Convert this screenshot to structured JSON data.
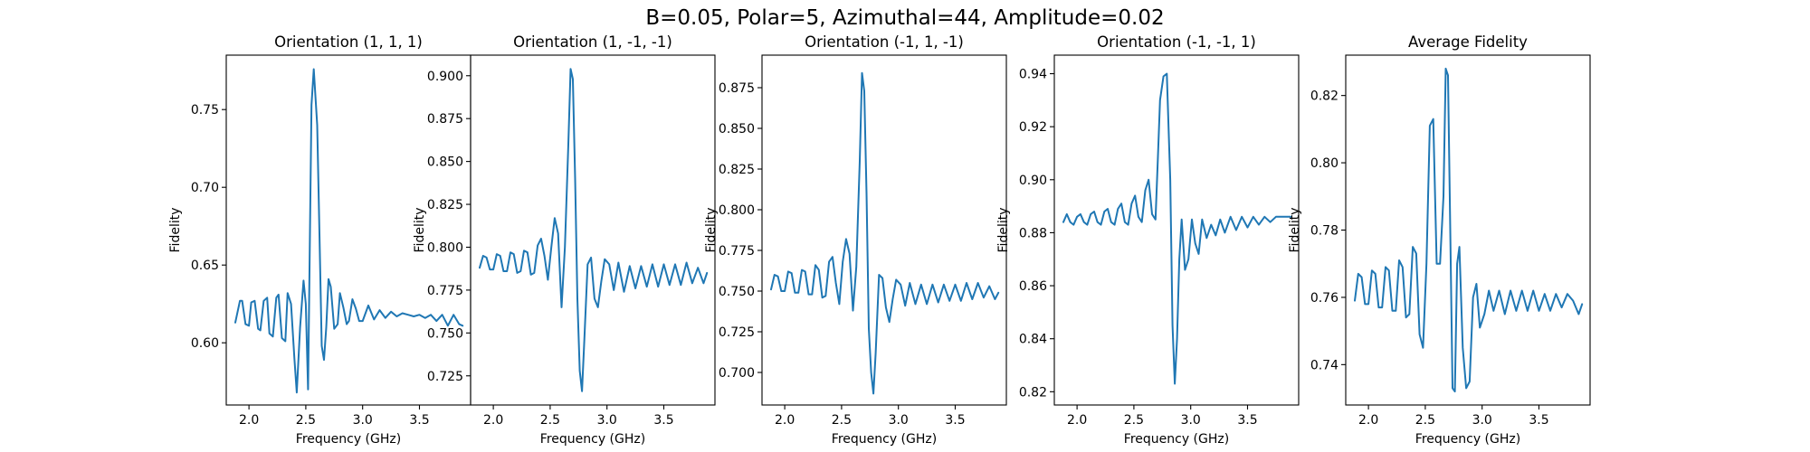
{
  "figure": {
    "title": "B=0.05, Polar=5, Azimuthal=44, Amplitude=0.02",
    "line_color": "#1f77b4"
  },
  "chart_data": [
    {
      "type": "line",
      "title": "Orientation (1, 1, 1)",
      "xlabel": "Frequency (GHz)",
      "ylabel": "Fidelity",
      "xlim": [
        1.8,
        3.95
      ],
      "ylim": [
        0.56,
        0.785
      ],
      "xticks": [
        2.0,
        2.5,
        3.0,
        3.5
      ],
      "xtick_labels": [
        "2.0",
        "2.5",
        "3.0",
        "3.5"
      ],
      "yticks": [
        0.6,
        0.65,
        0.7,
        0.75
      ],
      "ytick_labels": [
        "0.60",
        "0.65",
        "0.70",
        "0.75"
      ],
      "grid": false,
      "series": [
        {
          "x": [
            1.88,
            1.92,
            1.94,
            1.97,
            2.0,
            2.02,
            2.05,
            2.08,
            2.1,
            2.13,
            2.16,
            2.18,
            2.21,
            2.24,
            2.26,
            2.29,
            2.32,
            2.34,
            2.37,
            2.4,
            2.42,
            2.45,
            2.48,
            2.5,
            2.52,
            2.55,
            2.57,
            2.6,
            2.62,
            2.64,
            2.66,
            2.68,
            2.7,
            2.72,
            2.75,
            2.78,
            2.8,
            2.83,
            2.86,
            2.88,
            2.91,
            2.94,
            2.97,
            3.0,
            3.05,
            3.1,
            3.15,
            3.2,
            3.25,
            3.3,
            3.35,
            3.4,
            3.45,
            3.5,
            3.55,
            3.6,
            3.65,
            3.7,
            3.75,
            3.8,
            3.85,
            3.88
          ],
          "y": [
            0.613,
            0.627,
            0.627,
            0.612,
            0.611,
            0.626,
            0.627,
            0.609,
            0.608,
            0.627,
            0.629,
            0.606,
            0.604,
            0.629,
            0.631,
            0.603,
            0.601,
            0.632,
            0.625,
            0.59,
            0.568,
            0.61,
            0.64,
            0.625,
            0.57,
            0.753,
            0.776,
            0.74,
            0.67,
            0.598,
            0.589,
            0.61,
            0.641,
            0.636,
            0.609,
            0.612,
            0.632,
            0.623,
            0.612,
            0.614,
            0.628,
            0.622,
            0.614,
            0.614,
            0.624,
            0.615,
            0.621,
            0.616,
            0.62,
            0.617,
            0.619,
            0.618,
            0.617,
            0.618,
            0.616,
            0.618,
            0.614,
            0.618,
            0.611,
            0.618,
            0.612,
            0.611
          ]
        }
      ]
    },
    {
      "type": "line",
      "title": "Orientation (1, -1, -1)",
      "xlabel": "Frequency (GHz)",
      "ylabel": "Fidelity",
      "xlim": [
        1.8,
        3.95
      ],
      "ylim": [
        0.708,
        0.912
      ],
      "xticks": [
        2.0,
        2.5,
        3.0,
        3.5
      ],
      "xtick_labels": [
        "2.0",
        "2.5",
        "3.0",
        "3.5"
      ],
      "yticks": [
        0.725,
        0.75,
        0.775,
        0.8,
        0.825,
        0.85,
        0.875,
        0.9
      ],
      "ytick_labels": [
        "0.725",
        "0.750",
        "0.775",
        "0.800",
        "0.825",
        "0.850",
        "0.875",
        "0.900"
      ],
      "grid": false,
      "series": [
        {
          "x": [
            1.88,
            1.91,
            1.94,
            1.97,
            2.0,
            2.03,
            2.06,
            2.09,
            2.12,
            2.15,
            2.18,
            2.21,
            2.24,
            2.27,
            2.3,
            2.33,
            2.36,
            2.39,
            2.42,
            2.45,
            2.48,
            2.51,
            2.54,
            2.57,
            2.6,
            2.63,
            2.66,
            2.68,
            2.7,
            2.72,
            2.74,
            2.76,
            2.78,
            2.8,
            2.83,
            2.86,
            2.89,
            2.92,
            2.95,
            2.98,
            3.02,
            3.06,
            3.1,
            3.15,
            3.2,
            3.25,
            3.3,
            3.35,
            3.4,
            3.45,
            3.5,
            3.55,
            3.6,
            3.65,
            3.7,
            3.75,
            3.8,
            3.85,
            3.88
          ],
          "y": [
            0.788,
            0.795,
            0.794,
            0.787,
            0.787,
            0.796,
            0.795,
            0.786,
            0.786,
            0.797,
            0.796,
            0.785,
            0.786,
            0.798,
            0.797,
            0.784,
            0.785,
            0.801,
            0.805,
            0.795,
            0.781,
            0.8,
            0.817,
            0.808,
            0.765,
            0.8,
            0.86,
            0.904,
            0.898,
            0.84,
            0.77,
            0.728,
            0.716,
            0.745,
            0.79,
            0.794,
            0.77,
            0.765,
            0.78,
            0.793,
            0.79,
            0.775,
            0.791,
            0.774,
            0.789,
            0.776,
            0.789,
            0.777,
            0.79,
            0.777,
            0.79,
            0.778,
            0.79,
            0.778,
            0.791,
            0.779,
            0.788,
            0.779,
            0.785
          ]
        }
      ]
    },
    {
      "type": "line",
      "title": "Orientation (-1, 1, -1)",
      "xlabel": "Frequency (GHz)",
      "ylabel": "Fidelity",
      "xlim": [
        1.8,
        3.95
      ],
      "ylim": [
        0.68,
        0.895
      ],
      "xticks": [
        2.0,
        2.5,
        3.0,
        3.5
      ],
      "xtick_labels": [
        "2.0",
        "2.5",
        "3.0",
        "3.5"
      ],
      "yticks": [
        0.7,
        0.725,
        0.75,
        0.775,
        0.8,
        0.825,
        0.85,
        0.875
      ],
      "ytick_labels": [
        "0.700",
        "0.725",
        "0.750",
        "0.775",
        "0.800",
        "0.825",
        "0.850",
        "0.875"
      ],
      "grid": false,
      "series": [
        {
          "x": [
            1.88,
            1.91,
            1.94,
            1.97,
            2.0,
            2.03,
            2.06,
            2.09,
            2.12,
            2.15,
            2.18,
            2.21,
            2.24,
            2.27,
            2.3,
            2.33,
            2.36,
            2.39,
            2.42,
            2.45,
            2.48,
            2.51,
            2.54,
            2.57,
            2.6,
            2.63,
            2.66,
            2.68,
            2.7,
            2.72,
            2.74,
            2.76,
            2.78,
            2.8,
            2.83,
            2.86,
            2.89,
            2.92,
            2.95,
            2.98,
            3.02,
            3.06,
            3.1,
            3.15,
            3.2,
            3.25,
            3.3,
            3.35,
            3.4,
            3.45,
            3.5,
            3.55,
            3.6,
            3.65,
            3.7,
            3.75,
            3.8,
            3.85,
            3.88
          ],
          "y": [
            0.751,
            0.76,
            0.759,
            0.75,
            0.75,
            0.762,
            0.761,
            0.749,
            0.749,
            0.763,
            0.762,
            0.748,
            0.748,
            0.766,
            0.763,
            0.746,
            0.747,
            0.768,
            0.771,
            0.755,
            0.742,
            0.768,
            0.782,
            0.773,
            0.738,
            0.765,
            0.83,
            0.884,
            0.873,
            0.81,
            0.727,
            0.7,
            0.687,
            0.712,
            0.76,
            0.758,
            0.74,
            0.731,
            0.745,
            0.757,
            0.754,
            0.741,
            0.755,
            0.742,
            0.754,
            0.742,
            0.754,
            0.743,
            0.754,
            0.744,
            0.754,
            0.744,
            0.755,
            0.745,
            0.755,
            0.746,
            0.753,
            0.745,
            0.749
          ]
        }
      ]
    },
    {
      "type": "line",
      "title": "Orientation (-1, -1, 1)",
      "xlabel": "Frequency (GHz)",
      "ylabel": "Fidelity",
      "xlim": [
        1.8,
        3.95
      ],
      "ylim": [
        0.815,
        0.947
      ],
      "xticks": [
        2.0,
        2.5,
        3.0,
        3.5
      ],
      "xtick_labels": [
        "2.0",
        "2.5",
        "3.0",
        "3.5"
      ],
      "yticks": [
        0.82,
        0.84,
        0.86,
        0.88,
        0.9,
        0.92,
        0.94
      ],
      "ytick_labels": [
        "0.82",
        "0.84",
        "0.86",
        "0.88",
        "0.90",
        "0.92",
        "0.94"
      ],
      "grid": false,
      "series": [
        {
          "x": [
            1.88,
            1.91,
            1.94,
            1.97,
            2.0,
            2.03,
            2.06,
            2.09,
            2.12,
            2.15,
            2.18,
            2.21,
            2.24,
            2.27,
            2.3,
            2.33,
            2.36,
            2.39,
            2.42,
            2.45,
            2.48,
            2.51,
            2.54,
            2.57,
            2.6,
            2.63,
            2.66,
            2.69,
            2.71,
            2.73,
            2.76,
            2.79,
            2.82,
            2.84,
            2.86,
            2.88,
            2.9,
            2.92,
            2.95,
            2.98,
            3.01,
            3.04,
            3.07,
            3.1,
            3.14,
            3.18,
            3.22,
            3.26,
            3.3,
            3.35,
            3.4,
            3.45,
            3.5,
            3.55,
            3.6,
            3.65,
            3.7,
            3.75,
            3.8,
            3.85,
            3.88
          ],
          "y": [
            0.884,
            0.887,
            0.884,
            0.883,
            0.886,
            0.887,
            0.884,
            0.883,
            0.887,
            0.888,
            0.884,
            0.883,
            0.888,
            0.889,
            0.884,
            0.883,
            0.889,
            0.891,
            0.884,
            0.883,
            0.891,
            0.894,
            0.886,
            0.884,
            0.896,
            0.9,
            0.887,
            0.885,
            0.907,
            0.93,
            0.939,
            0.94,
            0.9,
            0.845,
            0.823,
            0.84,
            0.87,
            0.885,
            0.866,
            0.87,
            0.885,
            0.876,
            0.872,
            0.885,
            0.878,
            0.883,
            0.879,
            0.885,
            0.88,
            0.886,
            0.881,
            0.886,
            0.882,
            0.886,
            0.883,
            0.886,
            0.884,
            0.886,
            0.886,
            0.886,
            0.886
          ]
        }
      ]
    },
    {
      "type": "line",
      "title": "Average Fidelity",
      "xlabel": "Frequency (GHz)",
      "ylabel": "Fidelity",
      "xlim": [
        1.8,
        3.95
      ],
      "ylim": [
        0.728,
        0.832
      ],
      "xticks": [
        2.0,
        2.5,
        3.0,
        3.5
      ],
      "xtick_labels": [
        "2.0",
        "2.5",
        "3.0",
        "3.5"
      ],
      "yticks": [
        0.74,
        0.76,
        0.78,
        0.8,
        0.82
      ],
      "ytick_labels": [
        "0.74",
        "0.76",
        "0.78",
        "0.80",
        "0.82"
      ],
      "grid": false,
      "series": [
        {
          "x": [
            1.88,
            1.91,
            1.94,
            1.97,
            2.0,
            2.03,
            2.06,
            2.09,
            2.12,
            2.15,
            2.18,
            2.21,
            2.24,
            2.27,
            2.3,
            2.33,
            2.36,
            2.39,
            2.42,
            2.45,
            2.48,
            2.51,
            2.54,
            2.57,
            2.6,
            2.63,
            2.66,
            2.68,
            2.7,
            2.72,
            2.74,
            2.76,
            2.78,
            2.8,
            2.83,
            2.86,
            2.89,
            2.92,
            2.95,
            2.98,
            3.02,
            3.06,
            3.1,
            3.15,
            3.2,
            3.25,
            3.3,
            3.35,
            3.4,
            3.45,
            3.5,
            3.55,
            3.6,
            3.65,
            3.7,
            3.75,
            3.8,
            3.85,
            3.88
          ],
          "y": [
            0.759,
            0.767,
            0.766,
            0.758,
            0.758,
            0.768,
            0.767,
            0.757,
            0.757,
            0.769,
            0.768,
            0.756,
            0.756,
            0.771,
            0.769,
            0.754,
            0.755,
            0.775,
            0.773,
            0.749,
            0.745,
            0.77,
            0.811,
            0.813,
            0.77,
            0.77,
            0.79,
            0.828,
            0.826,
            0.78,
            0.733,
            0.732,
            0.77,
            0.775,
            0.745,
            0.733,
            0.735,
            0.76,
            0.764,
            0.751,
            0.755,
            0.762,
            0.756,
            0.762,
            0.755,
            0.762,
            0.756,
            0.762,
            0.756,
            0.762,
            0.756,
            0.761,
            0.756,
            0.761,
            0.757,
            0.761,
            0.759,
            0.755,
            0.758
          ]
        }
      ]
    }
  ]
}
